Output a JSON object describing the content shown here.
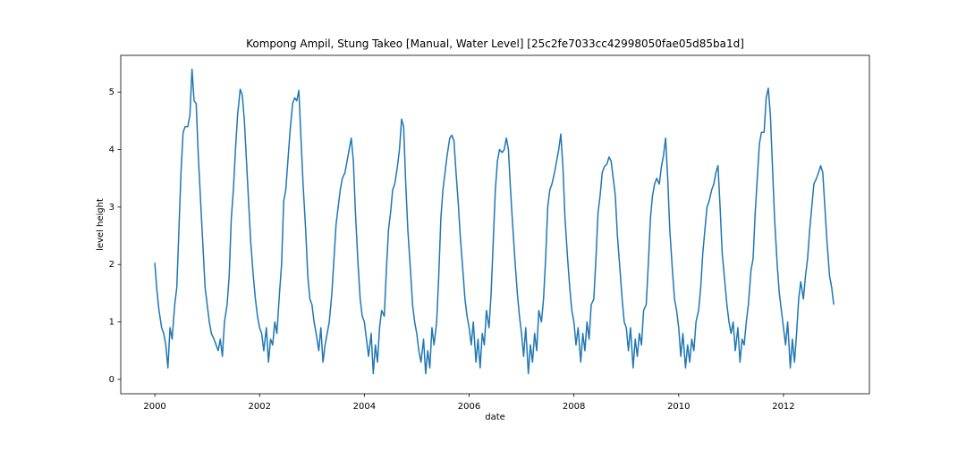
{
  "chart_data": {
    "type": "line",
    "title": "Kompong Ampil, Stung Takeo [Manual, Water Level] [25c2fe7033cc42998050fae05d85ba1d]",
    "xlabel": "date",
    "ylabel": "level height",
    "color": "#1f77b4",
    "xlim": [
      1999.35,
      2013.64
    ],
    "ylim": [
      -0.25,
      5.64
    ],
    "xticks": [
      2000,
      2002,
      2004,
      2006,
      2008,
      2010,
      2012
    ],
    "yticks": [
      0,
      1,
      2,
      3,
      4,
      5
    ],
    "x": [
      2000,
      2000.04,
      2000.08,
      2000.13,
      2000.17,
      2000.21,
      2000.25,
      2000.29,
      2000.33,
      2000.38,
      2000.42,
      2000.46,
      2000.5,
      2000.54,
      2000.58,
      2000.63,
      2000.67,
      2000.71,
      2000.75,
      2000.79,
      2000.83,
      2000.88,
      2000.92,
      2000.96,
      2001,
      2001.04,
      2001.08,
      2001.13,
      2001.17,
      2001.21,
      2001.25,
      2001.29,
      2001.33,
      2001.38,
      2001.42,
      2001.46,
      2001.5,
      2001.54,
      2001.58,
      2001.63,
      2001.67,
      2001.71,
      2001.75,
      2001.79,
      2001.83,
      2001.88,
      2001.92,
      2001.96,
      2002,
      2002.04,
      2002.08,
      2002.13,
      2002.17,
      2002.21,
      2002.25,
      2002.29,
      2002.33,
      2002.38,
      2002.42,
      2002.46,
      2002.5,
      2002.54,
      2002.58,
      2002.63,
      2002.67,
      2002.71,
      2002.75,
      2002.79,
      2002.83,
      2002.88,
      2002.92,
      2002.96,
      2003,
      2003.04,
      2003.08,
      2003.13,
      2003.17,
      2003.21,
      2003.25,
      2003.29,
      2003.33,
      2003.38,
      2003.42,
      2003.46,
      2003.5,
      2003.54,
      2003.58,
      2003.63,
      2003.67,
      2003.71,
      2003.75,
      2003.79,
      2003.83,
      2003.88,
      2003.92,
      2003.96,
      2004,
      2004.04,
      2004.08,
      2004.13,
      2004.17,
      2004.21,
      2004.25,
      2004.29,
      2004.33,
      2004.38,
      2004.42,
      2004.46,
      2004.5,
      2004.54,
      2004.58,
      2004.63,
      2004.67,
      2004.71,
      2004.75,
      2004.79,
      2004.83,
      2004.88,
      2004.92,
      2004.96,
      2005,
      2005.04,
      2005.08,
      2005.13,
      2005.17,
      2005.21,
      2005.25,
      2005.29,
      2005.33,
      2005.38,
      2005.42,
      2005.46,
      2005.5,
      2005.54,
      2005.58,
      2005.63,
      2005.67,
      2005.71,
      2005.75,
      2005.79,
      2005.83,
      2005.88,
      2005.92,
      2005.96,
      2006,
      2006.04,
      2006.08,
      2006.13,
      2006.17,
      2006.21,
      2006.25,
      2006.29,
      2006.33,
      2006.38,
      2006.42,
      2006.46,
      2006.5,
      2006.54,
      2006.58,
      2006.63,
      2006.67,
      2006.71,
      2006.75,
      2006.79,
      2006.83,
      2006.88,
      2006.92,
      2006.96,
      2007,
      2007.04,
      2007.08,
      2007.13,
      2007.17,
      2007.21,
      2007.25,
      2007.29,
      2007.33,
      2007.38,
      2007.42,
      2007.46,
      2007.5,
      2007.54,
      2007.58,
      2007.63,
      2007.67,
      2007.71,
      2007.75,
      2007.79,
      2007.83,
      2007.88,
      2007.92,
      2007.96,
      2008,
      2008.04,
      2008.08,
      2008.13,
      2008.17,
      2008.21,
      2008.25,
      2008.29,
      2008.33,
      2008.38,
      2008.42,
      2008.46,
      2008.5,
      2008.54,
      2008.58,
      2008.63,
      2008.67,
      2008.71,
      2008.75,
      2008.79,
      2008.83,
      2008.88,
      2008.92,
      2008.96,
      2009,
      2009.04,
      2009.08,
      2009.13,
      2009.17,
      2009.21,
      2009.25,
      2009.29,
      2009.33,
      2009.38,
      2009.42,
      2009.46,
      2009.5,
      2009.54,
      2009.58,
      2009.63,
      2009.67,
      2009.71,
      2009.75,
      2009.79,
      2009.83,
      2009.88,
      2009.92,
      2009.96,
      2010,
      2010.04,
      2010.08,
      2010.13,
      2010.17,
      2010.21,
      2010.25,
      2010.29,
      2010.33,
      2010.38,
      2010.42,
      2010.46,
      2010.5,
      2010.54,
      2010.58,
      2010.63,
      2010.67,
      2010.71,
      2010.75,
      2010.79,
      2010.83,
      2010.88,
      2010.92,
      2010.96,
      2011,
      2011.04,
      2011.08,
      2011.13,
      2011.17,
      2011.21,
      2011.25,
      2011.29,
      2011.33,
      2011.38,
      2011.42,
      2011.46,
      2011.5,
      2011.54,
      2011.58,
      2011.63,
      2011.67,
      2011.71,
      2011.75,
      2011.79,
      2011.83,
      2011.88,
      2011.92,
      2011.96,
      2012,
      2012.04,
      2012.08,
      2012.13,
      2012.17,
      2012.21,
      2012.25,
      2012.29,
      2012.33,
      2012.38,
      2012.42,
      2012.46,
      2012.5,
      2012.54,
      2012.58,
      2012.63,
      2012.67,
      2012.71,
      2012.75,
      2012.79,
      2012.83,
      2012.88,
      2012.92,
      2012.96
    ],
    "values": [
      2.03,
      1.55,
      1.2,
      0.9,
      0.8,
      0.6,
      0.2,
      0.9,
      0.7,
      1.3,
      1.6,
      2.6,
      3.6,
      4.3,
      4.4,
      4.4,
      4.6,
      5.4,
      4.85,
      4.8,
      3.9,
      3.0,
      2.3,
      1.6,
      1.3,
      1.0,
      0.8,
      0.7,
      0.6,
      0.5,
      0.7,
      0.4,
      1.0,
      1.3,
      1.8,
      2.8,
      3.3,
      4.0,
      4.6,
      5.05,
      4.95,
      4.5,
      3.8,
      3.1,
      2.4,
      1.8,
      1.4,
      1.1,
      0.9,
      0.8,
      0.5,
      0.9,
      0.3,
      0.7,
      0.6,
      1.0,
      0.8,
      1.5,
      2.0,
      3.1,
      3.3,
      3.8,
      4.3,
      4.8,
      4.9,
      4.85,
      5.03,
      4.2,
      3.4,
      2.6,
      1.8,
      1.4,
      1.3,
      1.0,
      0.8,
      0.5,
      0.9,
      0.3,
      0.6,
      0.8,
      1.0,
      1.5,
      2.1,
      2.7,
      3.0,
      3.3,
      3.5,
      3.6,
      3.8,
      4.0,
      4.2,
      3.8,
      2.9,
      2.0,
      1.4,
      1.1,
      1.0,
      0.7,
      0.4,
      0.8,
      0.1,
      0.6,
      0.3,
      0.9,
      1.2,
      1.1,
      1.9,
      2.6,
      2.9,
      3.3,
      3.4,
      3.7,
      4.0,
      4.53,
      4.4,
      3.4,
      2.6,
      1.9,
      1.3,
      1.0,
      0.8,
      0.5,
      0.3,
      0.7,
      0.1,
      0.5,
      0.2,
      0.9,
      0.6,
      1.0,
      1.8,
      2.8,
      3.3,
      3.6,
      3.9,
      4.2,
      4.25,
      4.15,
      3.6,
      3.1,
      2.5,
      1.9,
      1.4,
      1.1,
      0.9,
      0.6,
      1.0,
      0.3,
      0.7,
      0.2,
      0.8,
      0.6,
      1.2,
      0.9,
      1.5,
      2.4,
      3.3,
      3.8,
      4.0,
      3.95,
      4.0,
      4.2,
      4.0,
      3.3,
      2.7,
      2.0,
      1.5,
      1.1,
      0.8,
      0.4,
      0.9,
      0.1,
      0.6,
      0.3,
      0.8,
      0.5,
      1.2,
      1.0,
      1.4,
      2.1,
      3.0,
      3.3,
      3.4,
      3.6,
      3.8,
      4.0,
      4.27,
      3.7,
      2.8,
      2.1,
      1.6,
      1.2,
      1.0,
      0.6,
      0.9,
      0.3,
      0.8,
      0.5,
      1.0,
      0.7,
      1.3,
      1.4,
      2.1,
      2.9,
      3.2,
      3.6,
      3.7,
      3.75,
      3.87,
      3.8,
      3.5,
      3.2,
      2.5,
      1.9,
      1.4,
      1.0,
      0.9,
      0.5,
      0.9,
      0.2,
      0.7,
      0.4,
      0.8,
      0.6,
      1.2,
      1.3,
      2.0,
      2.8,
      3.2,
      3.4,
      3.5,
      3.4,
      3.7,
      3.9,
      4.2,
      3.5,
      2.6,
      1.9,
      1.4,
      1.2,
      0.9,
      0.4,
      0.8,
      0.2,
      0.6,
      0.3,
      0.7,
      0.5,
      1.0,
      1.2,
      1.6,
      2.2,
      2.6,
      3.0,
      3.1,
      3.3,
      3.4,
      3.6,
      3.72,
      3.0,
      2.2,
      1.7,
      1.3,
      1.0,
      0.8,
      1.0,
      0.5,
      0.9,
      0.3,
      0.7,
      0.6,
      1.0,
      1.3,
      1.9,
      2.1,
      2.9,
      3.5,
      4.1,
      4.3,
      4.3,
      4.9,
      5.07,
      4.6,
      3.7,
      2.8,
      2.0,
      1.5,
      1.2,
      0.9,
      0.6,
      1.0,
      0.2,
      0.7,
      0.3,
      0.8,
      1.4,
      1.7,
      1.4,
      1.8,
      2.1,
      2.6,
      3.0,
      3.4,
      3.5,
      3.6,
      3.72,
      3.6,
      3.0,
      2.4,
      1.8,
      1.6,
      1.3
    ]
  }
}
